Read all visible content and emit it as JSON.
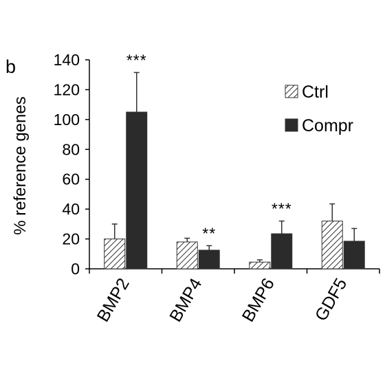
{
  "panel_label": "b",
  "chart_data": {
    "type": "bar",
    "title": "",
    "xlabel": "",
    "ylabel": "% reference genes",
    "categories": [
      "BMP2",
      "BMP4",
      "BMP6",
      "GDF5"
    ],
    "ylim": [
      0,
      140
    ],
    "yticks": [
      "0",
      "20",
      "40",
      "60",
      "80",
      "100",
      "120",
      "140"
    ],
    "grid": false,
    "legend_position": "top-right",
    "series": [
      {
        "name": "Ctrl",
        "values": [
          20,
          18,
          4.5,
          32
        ],
        "errors": [
          10,
          2.5,
          1.5,
          11.5
        ],
        "pattern": "diagonal-hatch",
        "color": "#ffffff"
      },
      {
        "name": "Compr",
        "values": [
          105,
          12.5,
          23.5,
          18.5
        ],
        "errors": [
          26.5,
          3,
          8.5,
          8.5
        ],
        "pattern": "solid",
        "color": "#2b2b2b"
      }
    ],
    "annotations": [
      {
        "category": "BMP2",
        "series": "Compr",
        "text": "***"
      },
      {
        "category": "BMP4",
        "series": "Compr",
        "text": "**"
      },
      {
        "category": "BMP6",
        "series": "Compr",
        "text": "***"
      }
    ]
  }
}
